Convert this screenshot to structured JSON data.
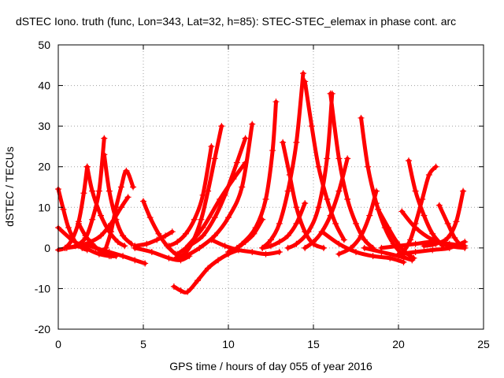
{
  "chart_data": {
    "type": "scatter",
    "title": "dSTEC Iono. truth (func, Lon=343, Lat=32, h=85): STEC-STEC_elemax in phase cont. arc",
    "xlabel": "GPS time / hours of day 055 of year 2016",
    "ylabel": "dSTEC  / TECUs",
    "xlim": [
      0,
      25
    ],
    "ylim": [
      -20,
      50
    ],
    "xticks": [
      0,
      5,
      10,
      15,
      20,
      25
    ],
    "yticks": [
      -20,
      -10,
      0,
      10,
      20,
      30,
      40,
      50
    ],
    "grid": true,
    "marker": "+",
    "color": "#ff0000",
    "series": [
      {
        "x": [
          0.0,
          0.3,
          0.6,
          1.0,
          1.4,
          1.7
        ],
        "y": [
          14.5,
          9.5,
          5.0,
          1.5,
          0.0,
          -0.5
        ]
      },
      {
        "x": [
          0.0,
          0.4,
          0.8,
          1.2,
          1.5,
          1.7
        ],
        "y": [
          -0.5,
          0.0,
          2.0,
          6.5,
          13.5,
          20.0
        ]
      },
      {
        "x": [
          1.7,
          2.0,
          2.5,
          3.0,
          3.5,
          3.9
        ],
        "y": [
          20.0,
          14.0,
          8.0,
          4.0,
          1.5,
          0.5
        ]
      },
      {
        "x": [
          0.0,
          0.8,
          1.6,
          2.4,
          3.0
        ],
        "y": [
          5.0,
          2.0,
          0.0,
          -1.5,
          -2.0
        ]
      },
      {
        "x": [
          0.4,
          1.0,
          1.6,
          2.0,
          2.4,
          2.7
        ],
        "y": [
          0.0,
          0.5,
          2.5,
          7.0,
          14.0,
          27.0
        ]
      },
      {
        "x": [
          2.7,
          3.0,
          3.4,
          3.8,
          4.3
        ],
        "y": [
          23.0,
          14.0,
          7.0,
          3.0,
          1.0
        ]
      },
      {
        "x": [
          0.5,
          1.2,
          1.9,
          2.5,
          3.1,
          3.7,
          4.1
        ],
        "y": [
          0.0,
          0.5,
          1.5,
          3.0,
          6.0,
          10.0,
          12.5
        ]
      },
      {
        "x": [
          1.5,
          2.2,
          3.0,
          3.8,
          4.5,
          5.1
        ],
        "y": [
          1.0,
          0.0,
          -1.0,
          -2.0,
          -3.0,
          -3.8
        ]
      },
      {
        "x": [
          1.2,
          1.6,
          2.0,
          2.4,
          2.8,
          3.1,
          3.4
        ],
        "y": [
          6.0,
          3.0,
          1.0,
          -0.5,
          -1.5,
          -2.0,
          -2.0
        ]
      },
      {
        "x": [
          2.8,
          3.1,
          3.4,
          3.7,
          4.0,
          4.4
        ],
        "y": [
          0.0,
          4.0,
          10.0,
          15.0,
          19.0,
          15.0
        ]
      },
      {
        "x": [
          5.0,
          5.4,
          5.9,
          6.4,
          6.9,
          7.3
        ],
        "y": [
          11.5,
          7.5,
          3.5,
          0.5,
          -1.5,
          -2.5
        ]
      },
      {
        "x": [
          4.5,
          5.5,
          6.5,
          7.2,
          7.7
        ],
        "y": [
          0.0,
          -1.0,
          -2.5,
          -3.0,
          -2.0
        ]
      },
      {
        "x": [
          4.5,
          5.2,
          5.8,
          6.3,
          6.7
        ],
        "y": [
          0.5,
          1.0,
          2.0,
          3.0,
          4.0
        ]
      },
      {
        "x": [
          6.8,
          7.2,
          7.6,
          8.2,
          8.8,
          9.4,
          10.0,
          10.6
        ],
        "y": [
          -9.5,
          -10.5,
          -10.8,
          -8.0,
          -5.0,
          -3.0,
          -1.5,
          -0.5
        ]
      },
      {
        "x": [
          6.9,
          7.4,
          7.9,
          8.4,
          8.8,
          9.2,
          9.6
        ],
        "y": [
          -2.5,
          -1.5,
          1.5,
          7.0,
          14.0,
          22.0,
          30.0
        ]
      },
      {
        "x": [
          6.5,
          7.0,
          7.5,
          8.0,
          8.5,
          9.0
        ],
        "y": [
          0.5,
          1.5,
          3.5,
          7.0,
          13.0,
          25.0
        ]
      },
      {
        "x": [
          7.0,
          7.7,
          8.5,
          9.2,
          9.8,
          10.5,
          11.0
        ],
        "y": [
          -1.5,
          0.5,
          3.0,
          7.5,
          13.0,
          21.0,
          27.0
        ]
      },
      {
        "x": [
          7.5,
          8.3,
          9.2,
          10.0,
          10.8,
          11.4
        ],
        "y": [
          -2.0,
          0.0,
          3.0,
          7.5,
          15.0,
          30.5
        ]
      },
      {
        "x": [
          7.5,
          8.5,
          9.5,
          10.3,
          11.0
        ],
        "y": [
          0.0,
          5.0,
          12.0,
          17.0,
          21.0
        ]
      },
      {
        "x": [
          10.0,
          10.5,
          11.0,
          11.5,
          12.0
        ],
        "y": [
          -1.0,
          0.0,
          1.5,
          3.5,
          7.0
        ]
      },
      {
        "x": [
          9.0,
          9.8,
          10.6,
          11.4,
          12.2,
          13.0
        ],
        "y": [
          2.0,
          0.5,
          -0.5,
          -1.0,
          -1.5,
          -1.0
        ]
      },
      {
        "x": [
          10.0,
          10.8,
          11.6,
          12.2,
          12.6,
          12.8
        ],
        "y": [
          -1.5,
          1.0,
          5.0,
          12.0,
          24.0,
          36.0
        ]
      },
      {
        "x": [
          12.0,
          12.5,
          13.0,
          13.5,
          14.0,
          14.4
        ],
        "y": [
          0.0,
          2.0,
          6.0,
          14.0,
          26.0,
          43.0
        ]
      },
      {
        "x": [
          14.5,
          14.9,
          15.3,
          15.8,
          16.3,
          16.8
        ],
        "y": [
          41.0,
          30.0,
          20.0,
          12.0,
          6.0,
          2.0
        ]
      },
      {
        "x": [
          12.0,
          12.5,
          13.0,
          13.5,
          14.0,
          14.5
        ],
        "y": [
          0.0,
          0.5,
          1.5,
          3.0,
          6.0,
          11.0
        ]
      },
      {
        "x": [
          13.2,
          13.6,
          14.0,
          14.5,
          15.0,
          15.6
        ],
        "y": [
          26.0,
          18.0,
          10.0,
          4.0,
          1.0,
          0.0
        ]
      },
      {
        "x": [
          13.5,
          14.0,
          14.7,
          15.3,
          15.8,
          16.1
        ],
        "y": [
          0.0,
          1.0,
          4.0,
          10.0,
          22.0,
          38.0
        ]
      },
      {
        "x": [
          16.0,
          16.5,
          17.0,
          17.5,
          18.0,
          18.5
        ],
        "y": [
          38.0,
          22.0,
          12.0,
          6.0,
          2.0,
          0.0
        ]
      },
      {
        "x": [
          14.5,
          15.0,
          15.5,
          16.0,
          16.5,
          17.0
        ],
        "y": [
          0.0,
          1.5,
          4.0,
          8.0,
          14.0,
          22.0
        ]
      },
      {
        "x": [
          17.8,
          18.2,
          18.7,
          19.2,
          19.7,
          20.3
        ],
        "y": [
          32.0,
          20.0,
          11.0,
          5.0,
          1.0,
          -2.0
        ]
      },
      {
        "x": [
          15.5,
          16.5,
          17.5,
          18.5,
          19.5,
          20.3
        ],
        "y": [
          4.0,
          1.0,
          -1.0,
          -2.0,
          -2.5,
          -3.5
        ]
      },
      {
        "x": [
          16.5,
          17.2,
          17.8,
          18.3,
          18.7
        ],
        "y": [
          -1.5,
          0.0,
          3.0,
          8.0,
          14.0
        ]
      },
      {
        "x": [
          18.8,
          19.4,
          19.9,
          20.4,
          20.9
        ],
        "y": [
          9.5,
          5.0,
          1.5,
          -1.0,
          -2.5
        ]
      },
      {
        "x": [
          20.3,
          20.7,
          21.0,
          21.4,
          21.8,
          22.2
        ],
        "y": [
          -1.0,
          2.0,
          6.0,
          12.0,
          18.0,
          20.0
        ]
      },
      {
        "x": [
          20.6,
          21.0,
          21.5,
          22.0,
          22.6
        ],
        "y": [
          21.5,
          14.0,
          8.0,
          3.5,
          0.5
        ]
      },
      {
        "x": [
          20.2,
          21.0,
          22.0,
          23.0,
          23.9
        ],
        "y": [
          9.0,
          5.0,
          2.0,
          0.5,
          0.0
        ]
      },
      {
        "x": [
          22.4,
          22.9,
          23.3,
          23.7
        ],
        "y": [
          10.5,
          6.0,
          2.5,
          0.5
        ]
      },
      {
        "x": [
          21.5,
          22.2,
          22.9,
          23.4,
          23.8
        ],
        "y": [
          0.5,
          1.0,
          2.5,
          6.5,
          14.0
        ]
      },
      {
        "x": [
          20.0,
          21.0,
          22.0,
          23.0,
          23.9
        ],
        "y": [
          -1.5,
          -1.0,
          -0.5,
          0.0,
          1.5
        ]
      },
      {
        "x": [
          19.0,
          20.0,
          21.0,
          22.0,
          23.0,
          23.9
        ],
        "y": [
          0.0,
          0.5,
          1.0,
          1.5,
          1.0,
          0.5
        ]
      },
      {
        "x": [
          18.0,
          19.0,
          20.0,
          20.8
        ],
        "y": [
          0.0,
          -1.0,
          -2.0,
          -3.0
        ]
      }
    ]
  }
}
